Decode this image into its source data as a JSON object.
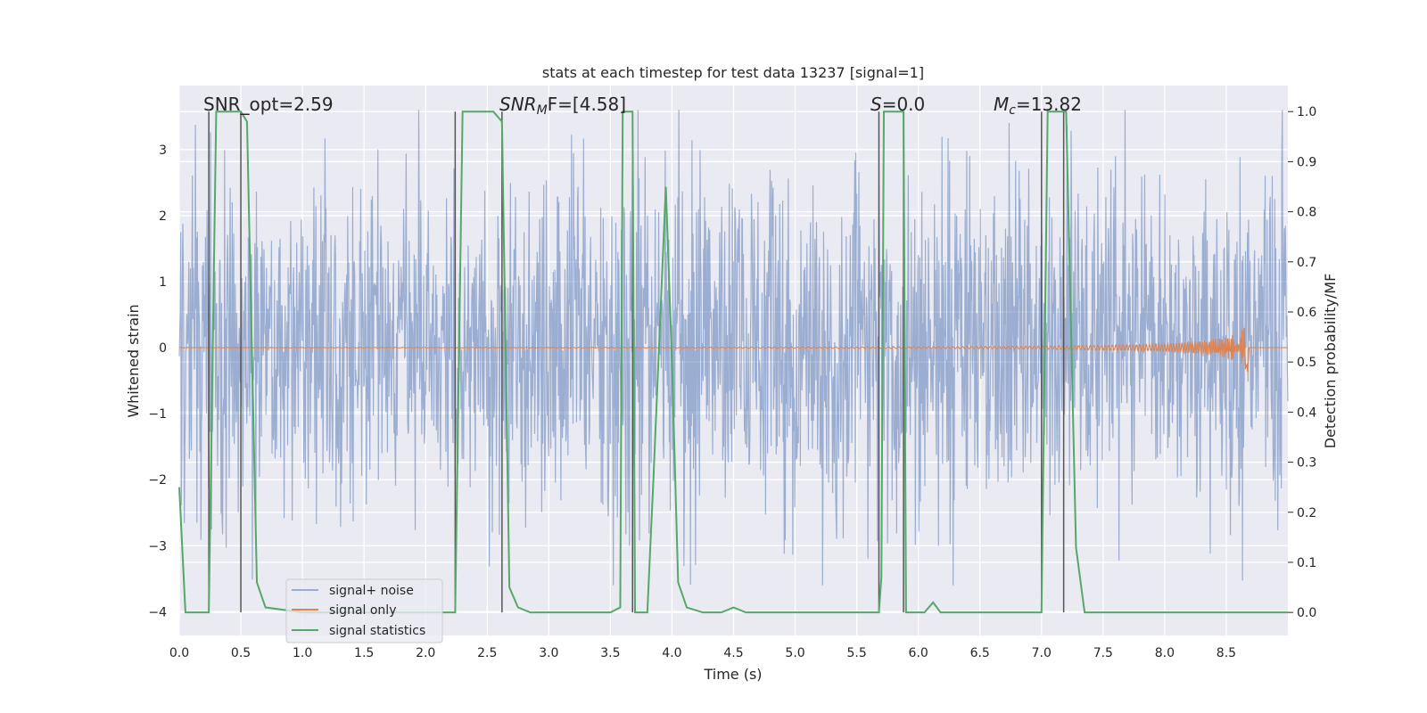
{
  "chart_data": {
    "type": "line",
    "title": "stats at each timestep for test data 13237 [signal=1]",
    "xlabel": "Time (s)",
    "ylabel_left": "Whitened strain",
    "ylabel_right": "Detection probability/MF",
    "xlim": [
      0.0,
      9.0
    ],
    "ylim_left": [
      -4.36,
      3.97
    ],
    "ylim_right": [
      -0.046,
      1.052
    ],
    "x_ticks": [
      0.0,
      0.5,
      1.0,
      1.5,
      2.0,
      2.5,
      3.0,
      3.5,
      4.0,
      4.5,
      5.0,
      5.5,
      6.0,
      6.5,
      7.0,
      7.5,
      8.0,
      8.5
    ],
    "x_tick_labels": [
      "0.0",
      "0.5",
      "1.0",
      "1.5",
      "2.0",
      "2.5",
      "3.0",
      "3.5",
      "4.0",
      "4.5",
      "5.0",
      "5.5",
      "6.0",
      "6.5",
      "7.0",
      "7.5",
      "8.0",
      "8.5"
    ],
    "y_left_ticks": [
      3,
      2,
      1,
      0,
      -1,
      -2,
      -3,
      -4
    ],
    "y_left_tick_labels": [
      "3",
      "2",
      "1",
      "0",
      "−1",
      "−2",
      "−3",
      "−4"
    ],
    "y_right_ticks": [
      1.0,
      0.9,
      0.8,
      0.7,
      0.6,
      0.5,
      0.4,
      0.3,
      0.2,
      0.1,
      0.0
    ],
    "y_right_tick_labels": [
      "1.0",
      "0.9",
      "0.8",
      "0.7",
      "0.6",
      "0.5",
      "0.4",
      "0.3",
      "0.2",
      "0.1",
      "0.0"
    ],
    "annotations": [
      {
        "id": "snr-opt",
        "text": "SNR_opt=2.59",
        "x": 0.19
      },
      {
        "id": "snr-mf",
        "base": "SNR",
        "sub": "M",
        "tail": "F=[4.58]",
        "x": 2.6
      },
      {
        "id": "s-value",
        "base": "S",
        "sub": "",
        "tail": "=0.0",
        "x": 5.62
      },
      {
        "id": "mc-value",
        "base": "M",
        "sub": "c",
        "tail": "=13.82",
        "x": 6.62
      }
    ],
    "series": [
      {
        "name": "signal+ noise",
        "color": "#4c72b0",
        "opacity": 0.5,
        "kind": "noise",
        "x_range": [
          0.0,
          9.0
        ],
        "n_samples": 2200,
        "y_band": [
          -3.6,
          3.6
        ]
      },
      {
        "name": "signal only",
        "color": "#dd8452",
        "kind": "chirp",
        "x_range": [
          0.0,
          9.0
        ],
        "merger_time": 8.68,
        "peak_amplitude": 0.42
      },
      {
        "name": "signal statistics",
        "color": "#55a868",
        "axis": "right",
        "x": [
          0.0,
          0.05,
          0.24,
          0.3,
          0.5,
          0.55,
          0.63,
          0.7,
          1.0,
          2.24,
          2.3,
          2.55,
          2.62,
          2.68,
          2.75,
          2.85,
          3.0,
          3.5,
          3.58,
          3.6,
          3.62,
          3.67,
          3.68,
          3.7,
          3.75,
          3.8,
          3.85,
          3.95,
          4.0,
          4.05,
          4.12,
          4.25,
          4.4,
          4.5,
          4.6,
          5.68,
          5.7,
          5.72,
          5.78,
          5.8,
          5.88,
          5.9,
          5.95,
          6.0,
          6.05,
          6.12,
          6.18,
          6.3,
          7.0,
          7.05,
          7.2,
          7.28,
          7.35,
          9.0
        ],
        "y": [
          0.25,
          0.0,
          0.0,
          1.0,
          1.0,
          0.98,
          0.06,
          0.01,
          0.0,
          0.0,
          1.0,
          1.0,
          0.98,
          0.05,
          0.01,
          0.0,
          0.0,
          0.0,
          0.01,
          1.0,
          1.0,
          1.0,
          1.0,
          0.0,
          0.0,
          0.0,
          0.27,
          0.85,
          0.5,
          0.06,
          0.01,
          0.0,
          0.0,
          0.01,
          0.0,
          0.0,
          0.07,
          1.0,
          1.0,
          1.0,
          1.0,
          0.0,
          0.0,
          0.0,
          0.0,
          0.02,
          0.0,
          0.0,
          0.0,
          1.0,
          1.0,
          0.13,
          0.0,
          0.0
        ]
      }
    ],
    "vertical_lines": [
      0.24,
      0.5,
      2.24,
      2.62,
      3.68,
      5.68,
      5.88,
      7.0,
      7.18
    ],
    "vertical_line_color": "#555555",
    "legend": {
      "placement": "lower-left",
      "entries": [
        "signal+ noise",
        "signal only",
        "signal statistics"
      ]
    },
    "grid": true
  }
}
